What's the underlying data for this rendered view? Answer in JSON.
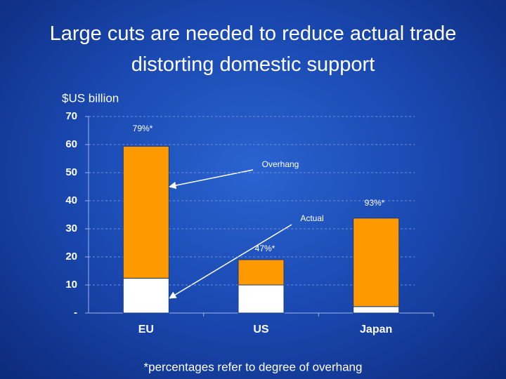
{
  "chart_data": {
    "type": "stacked_bar",
    "title": "Large cuts are needed to reduce actual trade distorting domestic support",
    "y_label": "$US billion",
    "categories": [
      "EU",
      "US",
      "Japan"
    ],
    "series": [
      {
        "name": "Actual",
        "color": "#ffffff",
        "values": [
          12.4,
          10,
          2.3
        ]
      },
      {
        "name": "Overhang",
        "color": "#ff9900",
        "values": [
          47,
          9,
          31.5
        ]
      }
    ],
    "annotations": [
      "79%*",
      "47%*",
      "93%*"
    ],
    "footnote": "*percentages refer to degree of overhang",
    "ylim": [
      0,
      70
    ],
    "yticks": [
      {
        "value": 0,
        "label": "-"
      },
      10,
      20,
      30,
      40,
      50,
      60,
      70
    ],
    "grid": true
  }
}
